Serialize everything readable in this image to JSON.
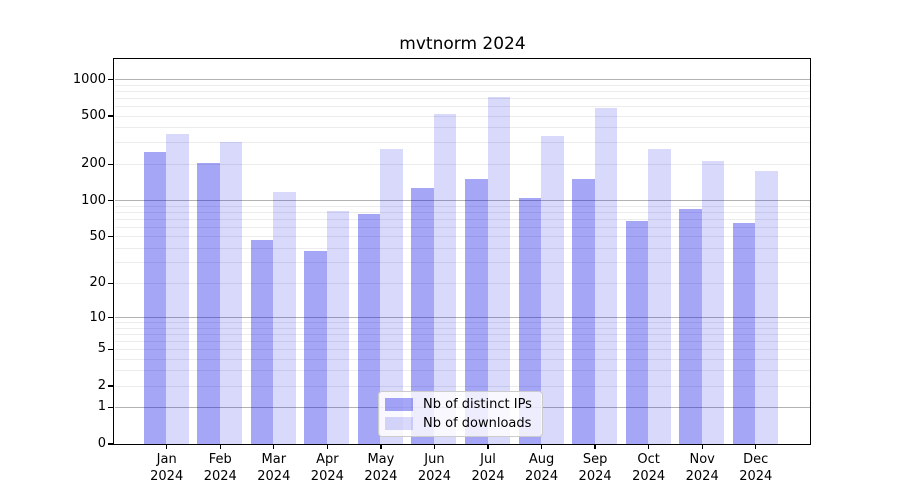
{
  "title": "mvtnorm 2024",
  "chart_data": {
    "type": "bar",
    "title": "mvtnorm 2024",
    "year": "2024",
    "categories": [
      "Jan",
      "Feb",
      "Mar",
      "Apr",
      "May",
      "Jun",
      "Jul",
      "Aug",
      "Sep",
      "Oct",
      "Nov",
      "Dec"
    ],
    "series": [
      {
        "name": "Nb of distinct IPs",
        "color": "rgba(0,0,230,0.35)",
        "values": [
          255,
          203,
          47,
          38,
          77,
          126,
          150,
          106,
          151,
          68,
          85,
          65
        ]
      },
      {
        "name": "Nb of downloads",
        "color": "rgba(0,0,230,0.15)",
        "values": [
          355,
          305,
          118,
          82,
          270,
          520,
          720,
          340,
          578,
          265,
          212,
          175
        ]
      }
    ],
    "yscale": "log1p",
    "ylim": [
      0,
      1450
    ],
    "y_ticks": [
      0,
      1,
      2,
      5,
      10,
      20,
      50,
      100,
      200,
      500,
      1000
    ],
    "grid": {
      "major": [
        1,
        10,
        100,
        1000
      ],
      "minor": [
        2,
        3,
        4,
        5,
        6,
        7,
        8,
        9,
        20,
        30,
        40,
        50,
        60,
        70,
        80,
        90,
        200,
        300,
        400,
        500,
        600,
        700,
        800,
        900
      ],
      "major_color": "#b3b3b3",
      "minor_color": "#ececec"
    },
    "legend_position": "lower center",
    "xlabel": "",
    "ylabel": ""
  }
}
